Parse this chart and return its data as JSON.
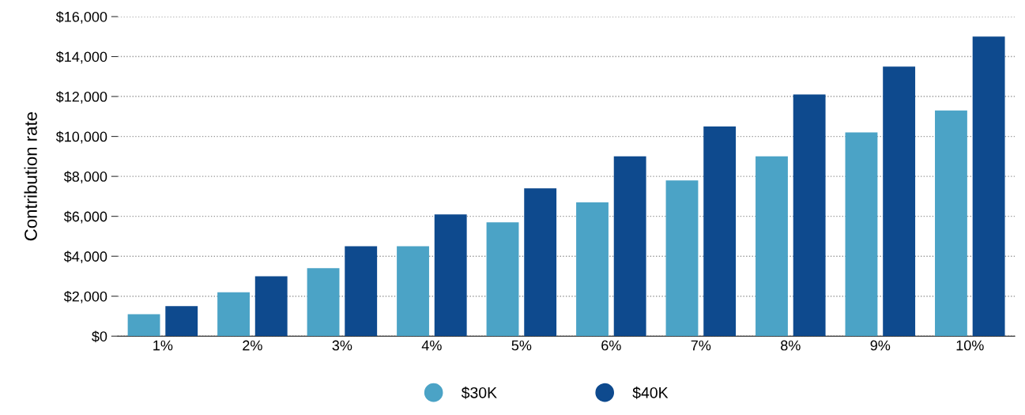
{
  "chart_data": {
    "type": "bar",
    "ylabel": "Contribution rate",
    "categories": [
      "1%",
      "2%",
      "3%",
      "4%",
      "5%",
      "6%",
      "7%",
      "8%",
      "9%",
      "10%"
    ],
    "series": [
      {
        "name": "$30K",
        "color": "#4ba3c6",
        "values": [
          1100,
          2200,
          3400,
          4500,
          5700,
          6700,
          7800,
          9000,
          10200,
          11300
        ]
      },
      {
        "name": "$40K",
        "color": "#0e4a8e",
        "values": [
          1500,
          3000,
          4500,
          6100,
          7400,
          9000,
          10500,
          12100,
          13500,
          15000
        ]
      }
    ],
    "ylim": [
      0,
      16000
    ],
    "yticks": [
      {
        "value": 0,
        "label": "$0"
      },
      {
        "value": 2000,
        "label": "$2,000"
      },
      {
        "value": 4000,
        "label": "$4,000"
      },
      {
        "value": 6000,
        "label": "$6,000"
      },
      {
        "value": 8000,
        "label": "$8,000"
      },
      {
        "value": 10000,
        "label": "$10,000"
      },
      {
        "value": 12000,
        "label": "$12,000"
      },
      {
        "value": 14000,
        "label": "$14,000"
      },
      {
        "value": 16000,
        "label": "$16,000"
      }
    ],
    "grid": "y",
    "legend": "bottom"
  }
}
